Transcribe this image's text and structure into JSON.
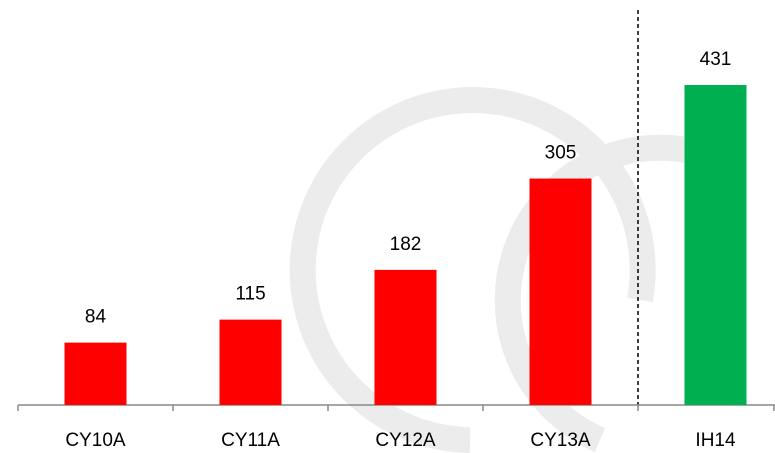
{
  "chart_data": {
    "type": "bar",
    "categories": [
      "CY10A",
      "CY11A",
      "CY12A",
      "CY13A",
      "IH14"
    ],
    "values": [
      84,
      115,
      182,
      305,
      431
    ],
    "colors": [
      "#ff0000",
      "#ff0000",
      "#ff0000",
      "#ff0000",
      "#00b050"
    ]
  }
}
